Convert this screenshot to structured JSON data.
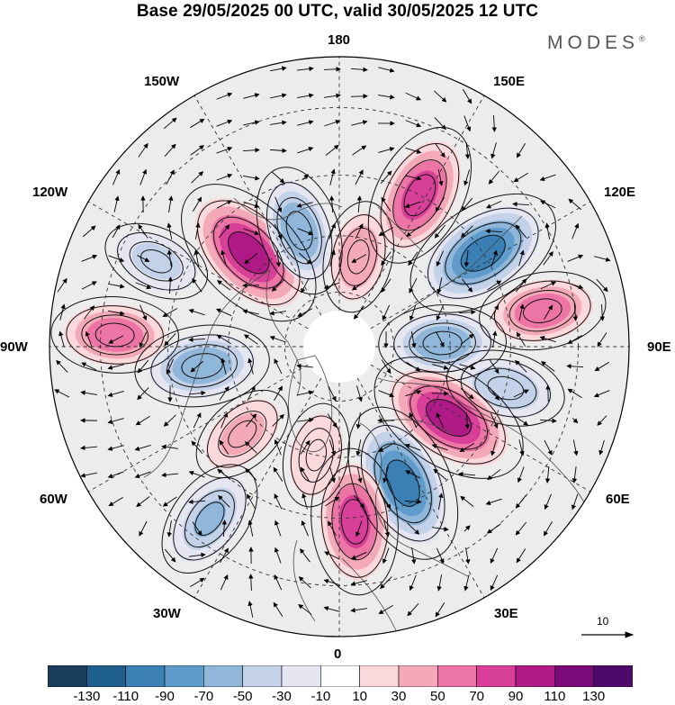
{
  "title": "Base 29/05/2025 00 UTC, valid 30/05/2025 12 UTC",
  "brand": {
    "name": "MODES",
    "mark": "®"
  },
  "longitude_labels": [
    {
      "id": "180",
      "text": "180"
    },
    {
      "id": "150E",
      "text": "150E"
    },
    {
      "id": "120E",
      "text": "120E"
    },
    {
      "id": "90E",
      "text": "90E"
    },
    {
      "id": "60E",
      "text": "60E"
    },
    {
      "id": "30E",
      "text": "30E"
    },
    {
      "id": "0",
      "text": "0"
    },
    {
      "id": "30W",
      "text": "30W"
    },
    {
      "id": "60W",
      "text": "60W"
    },
    {
      "id": "90W",
      "text": "90W"
    },
    {
      "id": "120W",
      "text": "120W"
    },
    {
      "id": "150W",
      "text": "150W"
    }
  ],
  "vector_reference": {
    "value": "10"
  },
  "colorbar": {
    "ticks": [
      "-130",
      "-110",
      "-90",
      "-70",
      "-50",
      "-30",
      "-10",
      "10",
      "30",
      "50",
      "70",
      "90",
      "110",
      "130"
    ],
    "colors": [
      "#1a3d5c",
      "#1f5f8e",
      "#3a80b5",
      "#5f9ccb",
      "#90b6da",
      "#c3d2e8",
      "#e6e6f2",
      "#ffffff",
      "#fbd8dc",
      "#f4a9b8",
      "#ec75a6",
      "#d83f98",
      "#b01a86",
      "#7a0a79",
      "#4e0a6b"
    ]
  },
  "map": {
    "projection": "north-polar-stereographic",
    "anomaly_centers": [
      {
        "name": "positive-anomaly-150e",
        "lon": 152,
        "lat": 45,
        "value": 80
      },
      {
        "name": "negative-anomaly-120e",
        "lon": 123,
        "lat": 45,
        "value": -100
      },
      {
        "name": "positive-anomaly-100e",
        "lon": 100,
        "lat": 37,
        "value": 55
      },
      {
        "name": "negative-anomaly-92e",
        "lon": 92,
        "lat": 62,
        "value": -55
      },
      {
        "name": "negative-anomaly-76e",
        "lon": 76,
        "lat": 45,
        "value": -45
      },
      {
        "name": "positive-anomaly-57e",
        "lon": 57,
        "lat": 55,
        "value": 105
      },
      {
        "name": "negative-anomaly-25e",
        "lon": 25,
        "lat": 50,
        "value": -100
      },
      {
        "name": "positive-anomaly-5e",
        "lon": 5,
        "lat": 44,
        "value": 80
      },
      {
        "name": "negative-anomaly-37w",
        "lon": -37,
        "lat": 35,
        "value": -50
      },
      {
        "name": "positive-anomaly-48w",
        "lon": -48,
        "lat": 55,
        "value": 30
      },
      {
        "name": "negative-anomaly-82w",
        "lon": -82,
        "lat": 53,
        "value": -65
      },
      {
        "name": "positive-anomaly-93w",
        "lon": -93,
        "lat": 33,
        "value": 55
      },
      {
        "name": "positive-anomaly-136w",
        "lon": -136,
        "lat": 55,
        "value": 105
      },
      {
        "name": "negative-anomaly-161w",
        "lon": -161,
        "lat": 57,
        "value": -60
      },
      {
        "name": "negative-anomaly-115w",
        "lon": -115,
        "lat": 38,
        "value": -30
      },
      {
        "name": "positive-anomaly-12w",
        "lon": -12,
        "lat": 60,
        "value": 25
      },
      {
        "name": "positive-anomaly-168e",
        "lon": 168,
        "lat": 65,
        "value": 35
      }
    ]
  }
}
